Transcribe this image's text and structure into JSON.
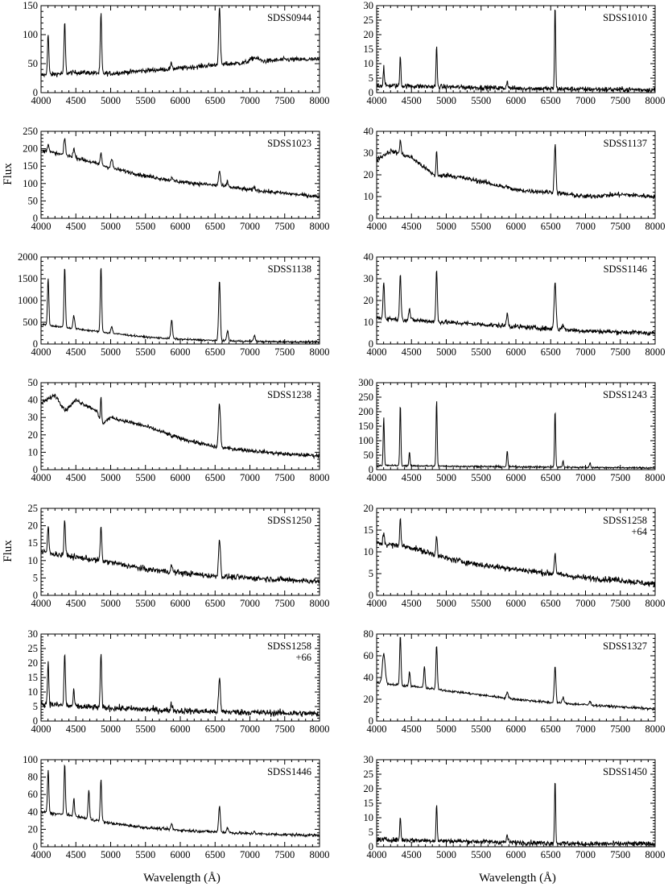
{
  "figure": {
    "ylabel": "Flux",
    "xlabel": "Wavelength (Å)",
    "line_color": "#000000"
  },
  "chart_data": [
    {
      "type": "line",
      "title": "SDSS0944",
      "xlim": [
        4000,
        8000
      ],
      "ylim": [
        0,
        150
      ],
      "yticks": [
        0,
        50,
        100,
        150
      ],
      "xticks": [
        4000,
        4500,
        5000,
        5500,
        6000,
        6500,
        7000,
        7500,
        8000
      ],
      "continuum": [
        [
          4000,
          30
        ],
        [
          4500,
          35
        ],
        [
          5000,
          33
        ],
        [
          5500,
          38
        ],
        [
          6000,
          42
        ],
        [
          6500,
          48
        ],
        [
          7000,
          52
        ],
        [
          7500,
          57
        ],
        [
          8000,
          57
        ]
      ],
      "noise": 3,
      "lines": [
        [
          4102,
          100,
          10
        ],
        [
          4340,
          120,
          10
        ],
        [
          4861,
          135,
          10
        ],
        [
          5876,
          50,
          12
        ],
        [
          6563,
          145,
          12
        ],
        [
          7065,
          60,
          60
        ]
      ]
    },
    {
      "type": "line",
      "title": "SDSS1010",
      "xlim": [
        4000,
        8000
      ],
      "ylim": [
        0,
        30
      ],
      "yticks": [
        0,
        5,
        10,
        15,
        20,
        25,
        30
      ],
      "xticks": [
        4000,
        4500,
        5000,
        5500,
        6000,
        6500,
        7000,
        7500,
        8000
      ],
      "continuum": [
        [
          4000,
          2.5
        ],
        [
          5000,
          2
        ],
        [
          6000,
          1.5
        ],
        [
          7000,
          1.2
        ],
        [
          8000,
          1
        ]
      ],
      "noise": 0.6,
      "lines": [
        [
          4102,
          9,
          8
        ],
        [
          4340,
          13,
          8
        ],
        [
          4861,
          16,
          8
        ],
        [
          5876,
          4,
          10
        ],
        [
          6563,
          30,
          8
        ]
      ]
    },
    {
      "type": "line",
      "title": "SDSS1023",
      "xlim": [
        4000,
        8000
      ],
      "ylim": [
        0,
        250
      ],
      "yticks": [
        0,
        50,
        100,
        150,
        200,
        250
      ],
      "xticks": [
        4000,
        4500,
        5000,
        5500,
        6000,
        6500,
        7000,
        7500,
        8000
      ],
      "continuum": [
        [
          4000,
          195
        ],
        [
          4500,
          175
        ],
        [
          5000,
          145
        ],
        [
          5500,
          122
        ],
        [
          6000,
          105
        ],
        [
          6500,
          95
        ],
        [
          7000,
          82
        ],
        [
          7500,
          72
        ],
        [
          8000,
          62
        ]
      ],
      "noise": 4,
      "lines": [
        [
          4102,
          215,
          12
        ],
        [
          4340,
          230,
          12
        ],
        [
          4471,
          200,
          12
        ],
        [
          4861,
          185,
          12
        ],
        [
          5015,
          170,
          14
        ],
        [
          5876,
          115,
          12
        ],
        [
          6563,
          135,
          14
        ],
        [
          6678,
          105,
          12
        ],
        [
          7065,
          90,
          12
        ]
      ]
    },
    {
      "type": "line",
      "title": "SDSS1137",
      "xlim": [
        4000,
        8000
      ],
      "ylim": [
        0,
        40
      ],
      "yticks": [
        0,
        10,
        20,
        30,
        40
      ],
      "xticks": [
        4000,
        4500,
        5000,
        5500,
        6000,
        6500,
        7000,
        7500,
        8000
      ],
      "continuum": [
        [
          4000,
          27
        ],
        [
          4200,
          31
        ],
        [
          4500,
          28
        ],
        [
          4861,
          19
        ],
        [
          5000,
          20
        ],
        [
          5500,
          17
        ],
        [
          6000,
          13
        ],
        [
          6500,
          12
        ],
        [
          7000,
          10
        ],
        [
          7500,
          11
        ],
        [
          8000,
          10
        ]
      ],
      "noise": 0.8,
      "lines": [
        [
          4340,
          36,
          10
        ],
        [
          4861,
          32,
          8
        ],
        [
          5876,
          15,
          12
        ],
        [
          6563,
          34,
          12
        ]
      ]
    },
    {
      "type": "line",
      "title": "SDSS1138",
      "xlim": [
        4000,
        8000
      ],
      "ylim": [
        0,
        2000
      ],
      "yticks": [
        0,
        500,
        1000,
        1500,
        2000
      ],
      "xticks": [
        4000,
        4500,
        5000,
        5500,
        6000,
        6500,
        7000,
        7500,
        8000
      ],
      "continuum": [
        [
          4000,
          450
        ],
        [
          4500,
          350
        ],
        [
          5000,
          250
        ],
        [
          5500,
          160
        ],
        [
          6000,
          110
        ],
        [
          6500,
          80
        ],
        [
          7000,
          60
        ],
        [
          7500,
          50
        ],
        [
          8000,
          45
        ]
      ],
      "noise": 15,
      "lines": [
        [
          4102,
          1500,
          10
        ],
        [
          4340,
          1780,
          10
        ],
        [
          4471,
          650,
          12
        ],
        [
          4861,
          1780,
          10
        ],
        [
          5015,
          400,
          12
        ],
        [
          5876,
          550,
          12
        ],
        [
          6563,
          1450,
          12
        ],
        [
          6678,
          300,
          12
        ],
        [
          7065,
          200,
          12
        ]
      ]
    },
    {
      "type": "line",
      "title": "SDSS1146",
      "xlim": [
        4000,
        8000
      ],
      "ylim": [
        0,
        40
      ],
      "yticks": [
        0,
        10,
        20,
        30,
        40
      ],
      "xticks": [
        4000,
        4500,
        5000,
        5500,
        6000,
        6500,
        7000,
        7500,
        8000
      ],
      "continuum": [
        [
          4000,
          12
        ],
        [
          5000,
          10
        ],
        [
          6000,
          8
        ],
        [
          7000,
          6
        ],
        [
          8000,
          5
        ]
      ],
      "noise": 0.8,
      "lines": [
        [
          4102,
          29,
          10
        ],
        [
          4340,
          33,
          10
        ],
        [
          4471,
          16,
          12
        ],
        [
          4861,
          34,
          10
        ],
        [
          5876,
          14,
          12
        ],
        [
          6563,
          28,
          14
        ],
        [
          6678,
          9,
          12
        ]
      ]
    },
    {
      "type": "line",
      "title": "SDSS1238",
      "xlim": [
        4000,
        8000
      ],
      "ylim": [
        0,
        50
      ],
      "yticks": [
        0,
        10,
        20,
        30,
        40,
        50
      ],
      "xticks": [
        4000,
        4500,
        5000,
        5500,
        6000,
        6500,
        7000,
        7500,
        8000
      ],
      "continuum": [
        [
          4000,
          38
        ],
        [
          4200,
          43
        ],
        [
          4350,
          34
        ],
        [
          4500,
          40
        ],
        [
          4800,
          34
        ],
        [
          4861,
          26
        ],
        [
          5000,
          30
        ],
        [
          5500,
          25
        ],
        [
          6000,
          18
        ],
        [
          6500,
          13
        ],
        [
          7000,
          11
        ],
        [
          7500,
          9
        ],
        [
          8000,
          8
        ]
      ],
      "noise": 0.8,
      "lines": [
        [
          4861,
          42,
          8
        ],
        [
          5876,
          19,
          12
        ],
        [
          6563,
          38,
          14
        ]
      ]
    },
    {
      "type": "line",
      "title": "SDSS1243",
      "xlim": [
        4000,
        8000
      ],
      "ylim": [
        0,
        300
      ],
      "yticks": [
        0,
        50,
        100,
        150,
        200,
        250,
        300
      ],
      "xticks": [
        4000,
        4500,
        5000,
        5500,
        6000,
        6500,
        7000,
        7500,
        8000
      ],
      "continuum": [
        [
          4000,
          15
        ],
        [
          5000,
          12
        ],
        [
          6000,
          10
        ],
        [
          7000,
          8
        ],
        [
          8000,
          6
        ]
      ],
      "noise": 2,
      "lines": [
        [
          4102,
          180,
          8
        ],
        [
          4340,
          225,
          8
        ],
        [
          4471,
          60,
          8
        ],
        [
          4861,
          240,
          8
        ],
        [
          5876,
          65,
          8
        ],
        [
          6563,
          205,
          8
        ],
        [
          6678,
          30,
          8
        ],
        [
          7065,
          25,
          8
        ]
      ]
    },
    {
      "type": "line",
      "title": "SDSS1250",
      "xlim": [
        4000,
        8000
      ],
      "ylim": [
        0,
        25
      ],
      "yticks": [
        0,
        5,
        10,
        15,
        20,
        25
      ],
      "xticks": [
        4000,
        4500,
        5000,
        5500,
        6000,
        6500,
        7000,
        7500,
        8000
      ],
      "continuum": [
        [
          4000,
          12.5
        ],
        [
          4500,
          11
        ],
        [
          5000,
          9.5
        ],
        [
          5500,
          7.5
        ],
        [
          6000,
          6.5
        ],
        [
          6500,
          5.5
        ],
        [
          7000,
          5
        ],
        [
          7500,
          4.5
        ],
        [
          8000,
          4
        ]
      ],
      "noise": 0.6,
      "lines": [
        [
          4102,
          20,
          10
        ],
        [
          4340,
          22,
          10
        ],
        [
          4861,
          20,
          10
        ],
        [
          5876,
          8.5,
          12
        ],
        [
          6563,
          16,
          14
        ]
      ]
    },
    {
      "type": "line",
      "title": "SDSS1258",
      "subtitle": "+64",
      "xlim": [
        4000,
        8000
      ],
      "ylim": [
        0,
        20
      ],
      "yticks": [
        0,
        5,
        10,
        15,
        20
      ],
      "xticks": [
        4000,
        4500,
        5000,
        5500,
        6000,
        6500,
        7000,
        7500,
        8000
      ],
      "continuum": [
        [
          4000,
          12
        ],
        [
          4500,
          11
        ],
        [
          5000,
          8.5
        ],
        [
          5500,
          7
        ],
        [
          6000,
          6
        ],
        [
          6500,
          5
        ],
        [
          7000,
          4
        ],
        [
          7500,
          3.5
        ],
        [
          8000,
          2.5
        ]
      ],
      "noise": 0.5,
      "lines": [
        [
          4102,
          14.5,
          10
        ],
        [
          4340,
          17.5,
          10
        ],
        [
          4861,
          14,
          10
        ],
        [
          5876,
          6.5,
          12
        ],
        [
          6563,
          9.5,
          12
        ]
      ]
    },
    {
      "type": "line",
      "title": "SDSS1258",
      "subtitle": "+66",
      "xlim": [
        4000,
        8000
      ],
      "ylim": [
        0,
        30
      ],
      "yticks": [
        0,
        5,
        10,
        15,
        20,
        25,
        30
      ],
      "xticks": [
        4000,
        4500,
        5000,
        5500,
        6000,
        6500,
        7000,
        7500,
        8000
      ],
      "continuum": [
        [
          4000,
          6
        ],
        [
          4500,
          5
        ],
        [
          5000,
          4.5
        ],
        [
          6000,
          3.5
        ],
        [
          7000,
          3
        ],
        [
          8000,
          2.5
        ]
      ],
      "noise": 0.8,
      "lines": [
        [
          4102,
          20,
          10
        ],
        [
          4340,
          23,
          10
        ],
        [
          4471,
          10,
          10
        ],
        [
          4861,
          23,
          10
        ],
        [
          5876,
          6,
          12
        ],
        [
          6563,
          15,
          12
        ]
      ]
    },
    {
      "type": "line",
      "title": "SDSS1327",
      "xlim": [
        4000,
        8000
      ],
      "ylim": [
        0,
        80
      ],
      "yticks": [
        0,
        20,
        40,
        60,
        80
      ],
      "xticks": [
        4000,
        4500,
        5000,
        5500,
        6000,
        6500,
        7000,
        7500,
        8000
      ],
      "continuum": [
        [
          4000,
          35
        ],
        [
          4500,
          32
        ],
        [
          5000,
          28
        ],
        [
          5500,
          24
        ],
        [
          6000,
          20
        ],
        [
          6500,
          17
        ],
        [
          7000,
          15
        ],
        [
          7500,
          13
        ],
        [
          8000,
          11
        ]
      ],
      "noise": 0.8,
      "lines": [
        [
          4102,
          62,
          20
        ],
        [
          4340,
          78,
          10
        ],
        [
          4471,
          45,
          10
        ],
        [
          4686,
          50,
          10
        ],
        [
          4861,
          70,
          10
        ],
        [
          5876,
          27,
          12
        ],
        [
          6563,
          50,
          12
        ],
        [
          6678,
          22,
          12
        ],
        [
          7065,
          18,
          12
        ]
      ]
    },
    {
      "type": "line",
      "title": "SDSS1446",
      "xlim": [
        4000,
        8000
      ],
      "ylim": [
        0,
        100
      ],
      "yticks": [
        0,
        20,
        40,
        60,
        80,
        100
      ],
      "xticks": [
        4000,
        4500,
        5000,
        5500,
        6000,
        6500,
        7000,
        7500,
        8000
      ],
      "continuum": [
        [
          4000,
          40
        ],
        [
          4500,
          35
        ],
        [
          5000,
          27
        ],
        [
          5500,
          22
        ],
        [
          6000,
          19
        ],
        [
          6500,
          17
        ],
        [
          7000,
          15
        ],
        [
          7500,
          14
        ],
        [
          8000,
          13
        ]
      ],
      "noise": 1.2,
      "lines": [
        [
          4102,
          88,
          10
        ],
        [
          4340,
          95,
          10
        ],
        [
          4471,
          55,
          10
        ],
        [
          4686,
          65,
          10
        ],
        [
          4861,
          78,
          10
        ],
        [
          5876,
          26,
          12
        ],
        [
          6563,
          47,
          12
        ],
        [
          6678,
          22,
          12
        ],
        [
          7065,
          18,
          12
        ]
      ]
    },
    {
      "type": "line",
      "title": "SDSS1450",
      "xlim": [
        4000,
        8000
      ],
      "ylim": [
        0,
        30
      ],
      "yticks": [
        0,
        5,
        10,
        15,
        20,
        25,
        30
      ],
      "xticks": [
        4000,
        4500,
        5000,
        5500,
        6000,
        6500,
        7000,
        7500,
        8000
      ],
      "continuum": [
        [
          4000,
          2.5
        ],
        [
          5000,
          2
        ],
        [
          6000,
          1.5
        ],
        [
          7000,
          1
        ],
        [
          8000,
          1
        ]
      ],
      "noise": 0.6,
      "lines": [
        [
          4340,
          10.5,
          8
        ],
        [
          4861,
          15,
          8
        ],
        [
          5876,
          4,
          10
        ],
        [
          6563,
          23,
          8
        ]
      ]
    }
  ]
}
